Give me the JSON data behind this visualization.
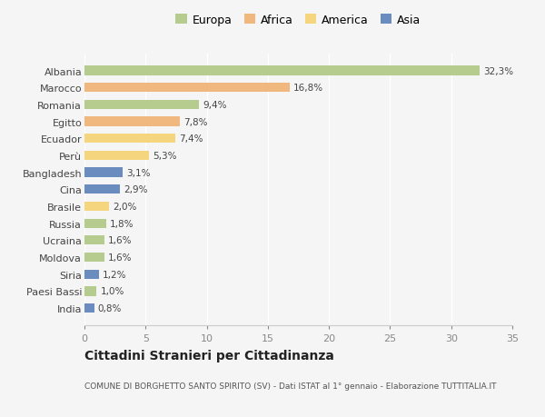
{
  "categories": [
    "Albania",
    "Marocco",
    "Romania",
    "Egitto",
    "Ecuador",
    "Perù",
    "Bangladesh",
    "Cina",
    "Brasile",
    "Russia",
    "Ucraina",
    "Moldova",
    "Siria",
    "Paesi Bassi",
    "India"
  ],
  "values": [
    32.3,
    16.8,
    9.4,
    7.8,
    7.4,
    5.3,
    3.1,
    2.9,
    2.0,
    1.8,
    1.6,
    1.6,
    1.2,
    1.0,
    0.8
  ],
  "labels": [
    "32,3%",
    "16,8%",
    "9,4%",
    "7,8%",
    "7,4%",
    "5,3%",
    "3,1%",
    "2,9%",
    "2,0%",
    "1,8%",
    "1,6%",
    "1,6%",
    "1,2%",
    "1,0%",
    "0,8%"
  ],
  "continents": [
    "Europa",
    "Africa",
    "Europa",
    "Africa",
    "America",
    "America",
    "Asia",
    "Asia",
    "America",
    "Europa",
    "Europa",
    "Europa",
    "Asia",
    "Europa",
    "Asia"
  ],
  "colors": {
    "Europa": "#b5cc8e",
    "Africa": "#f0b87e",
    "America": "#f5d57e",
    "Asia": "#6b8cbf"
  },
  "legend_order": [
    "Europa",
    "Africa",
    "America",
    "Asia"
  ],
  "background_color": "#f5f5f5",
  "title": "Cittadini Stranieri per Cittadinanza",
  "subtitle": "COMUNE DI BORGHETTO SANTO SPIRITO (SV) - Dati ISTAT al 1° gennaio - Elaborazione TUTTITALIA.IT",
  "xlim": [
    0,
    35
  ],
  "xticks": [
    0,
    5,
    10,
    15,
    20,
    25,
    30,
    35
  ],
  "bar_height": 0.55
}
